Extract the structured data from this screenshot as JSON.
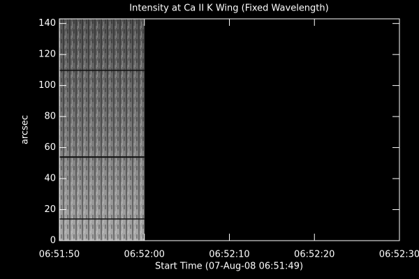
{
  "chart_data": {
    "type": "image",
    "title": "Intensity at Ca II K Wing (Fixed Wavelength)",
    "xlabel": "Start Time (07-Aug-08 06:51:49)",
    "ylabel": "arcsec",
    "xlim": [
      24710,
      24750
    ],
    "xticks": [
      {
        "value": 24710,
        "label": "06:51:50"
      },
      {
        "value": 24720,
        "label": "06:52:00"
      },
      {
        "value": 24730,
        "label": "06:52:10"
      },
      {
        "value": 24740,
        "label": "06:52:20"
      },
      {
        "value": 24750,
        "label": "06:52:30"
      }
    ],
    "ylim": [
      0,
      143
    ],
    "yticks": [
      0,
      20,
      40,
      60,
      80,
      100,
      120,
      140
    ],
    "image_xlim": [
      24710,
      24720
    ]
  }
}
